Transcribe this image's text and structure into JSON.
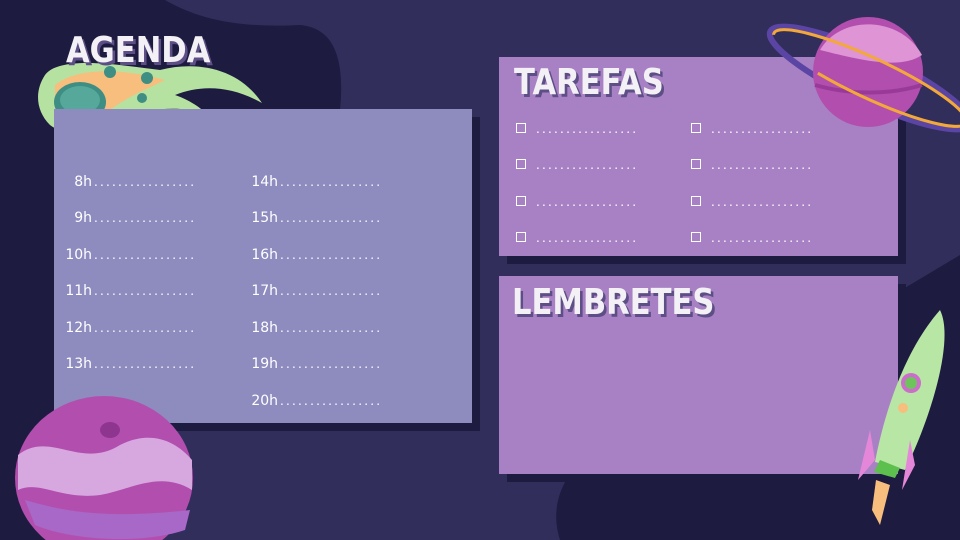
{
  "agenda": {
    "title": "AGENDA",
    "left_hours": [
      "8h",
      "9h",
      "10h",
      "11h",
      "12h",
      "13h"
    ],
    "right_hours": [
      "14h",
      "15h",
      "16h",
      "17h",
      "18h",
      "19h",
      "20h"
    ],
    "line": "................."
  },
  "tarefas": {
    "title": "TAREFAS",
    "line": ".................",
    "items_per_column": 4
  },
  "lembretes": {
    "title": "LEMBRETES"
  },
  "colors": {
    "background": "#322e5c",
    "background_dark": "#1e1b41",
    "agenda_panel": "#8e8bbf",
    "tarefas_panel": "#a881c4",
    "lembretes_panel": "#a881c4"
  },
  "icons": [
    "comet-icon",
    "saturn-planet-icon",
    "striped-planet-icon",
    "rocket-icon",
    "checkbox-icon"
  ]
}
